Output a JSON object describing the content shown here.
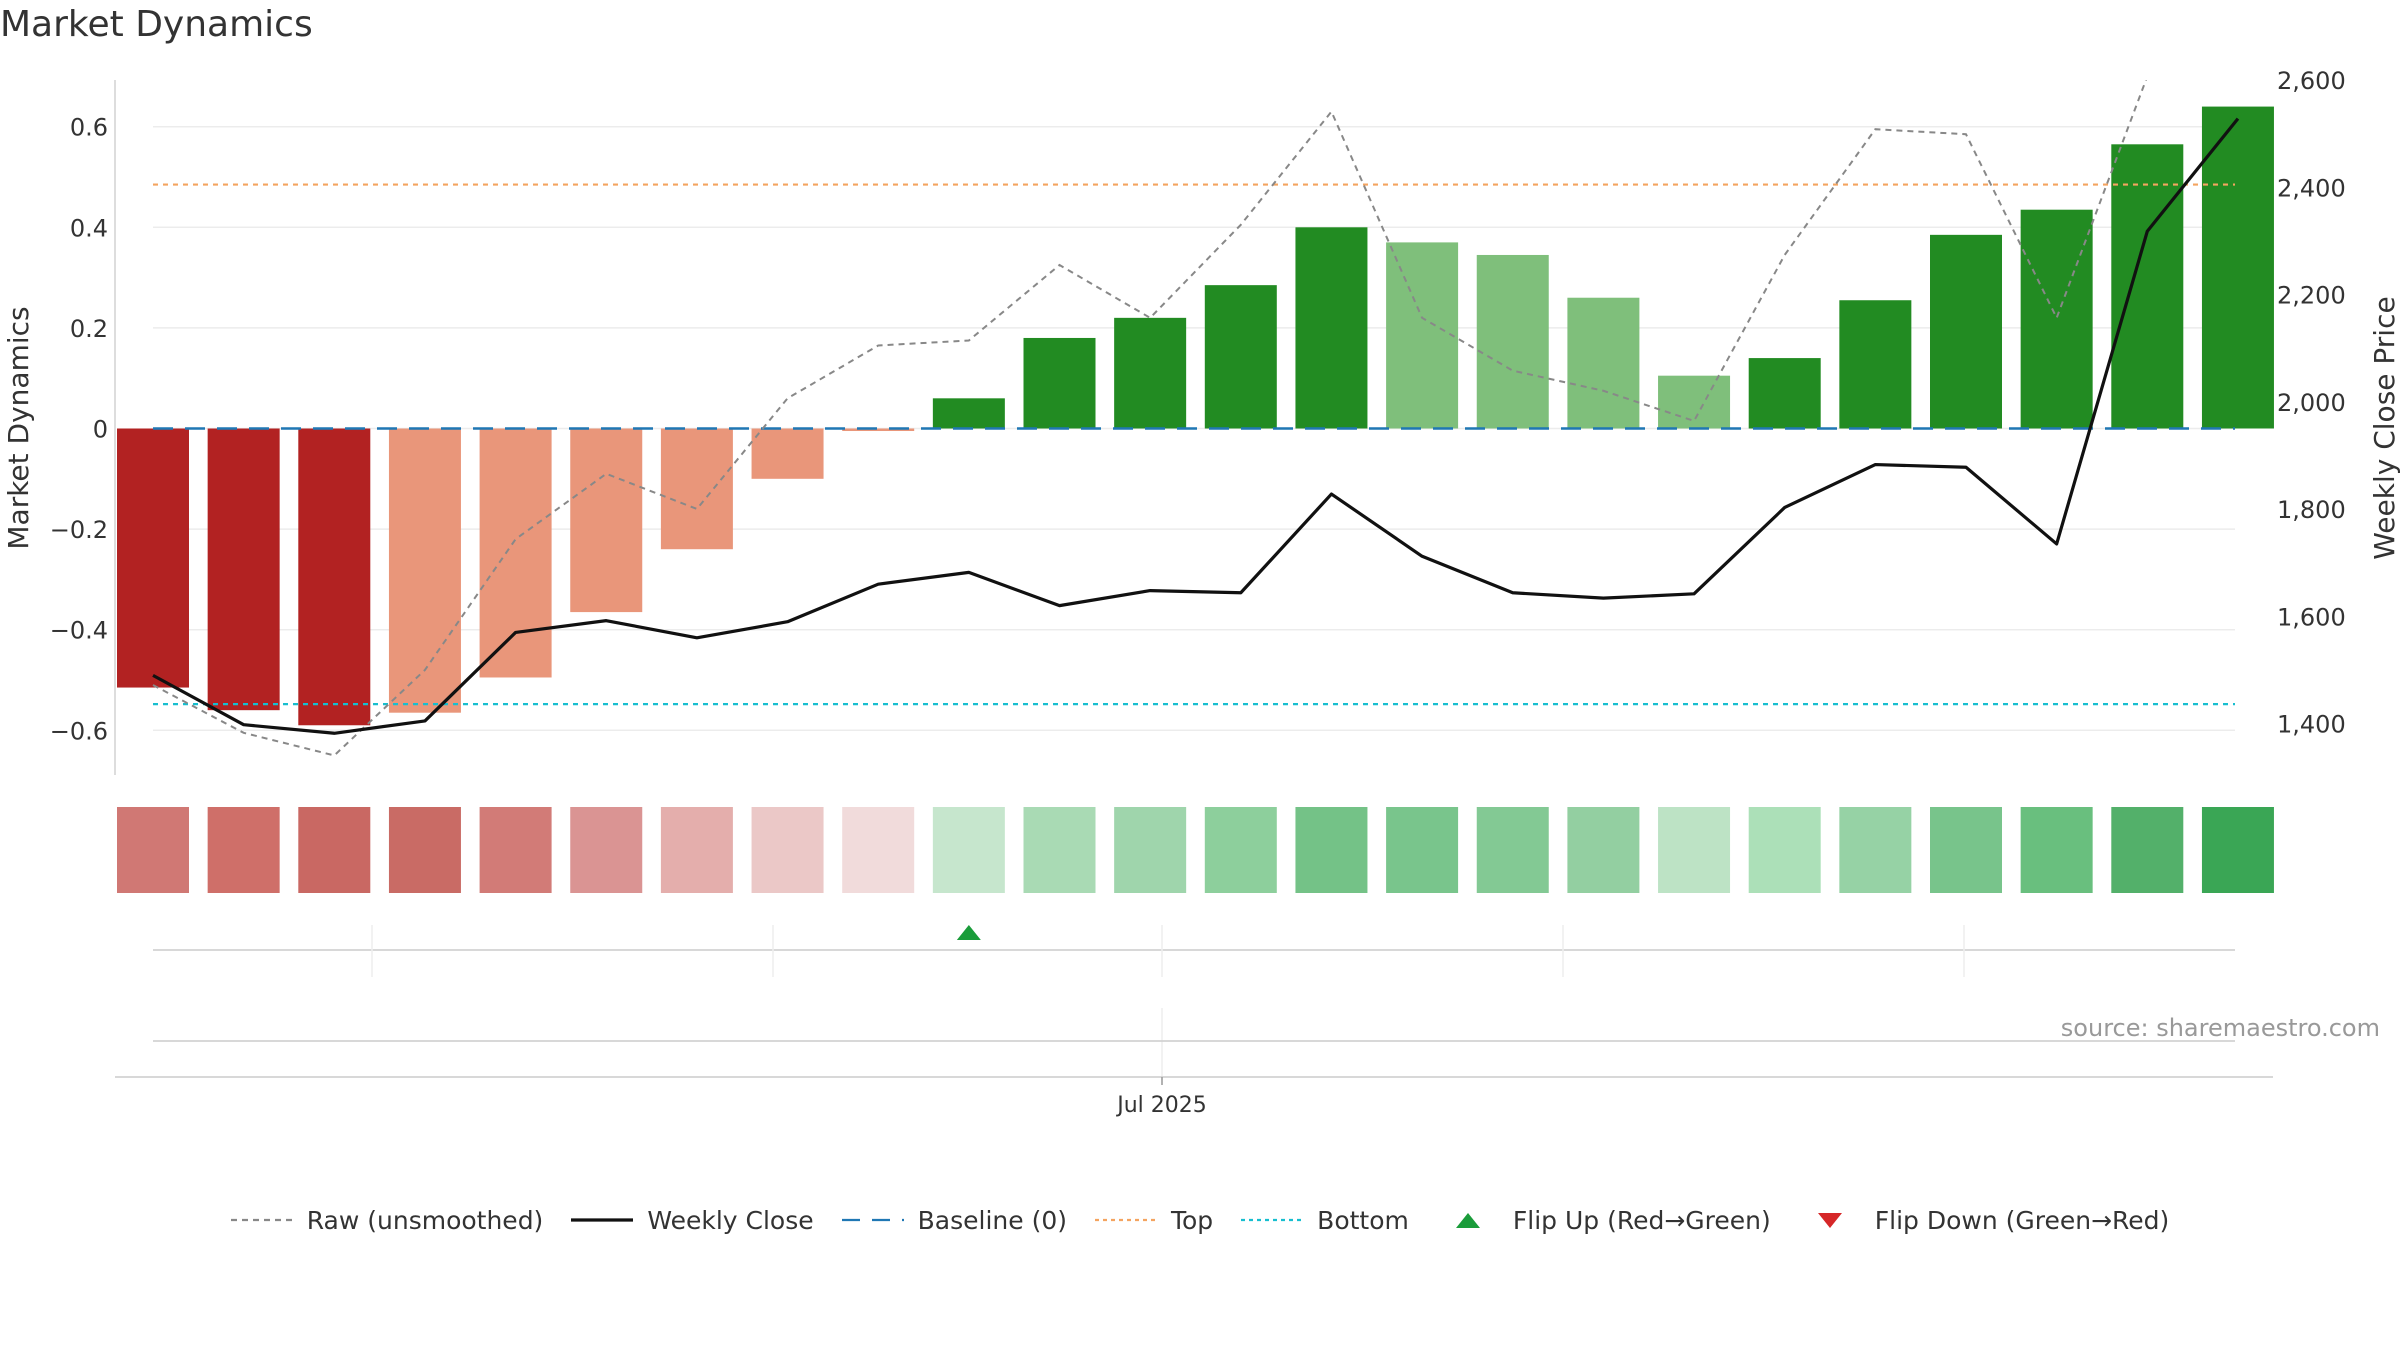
{
  "title": "Market Dynamics",
  "source": "source: sharemaestro.com",
  "chart_data": {
    "type": "bar",
    "title": "Market Dynamics",
    "ylabel": "Market Dynamics",
    "ylabel_right": "Weekly Close Price",
    "ylim": [
      -0.68,
      0.68
    ],
    "ylim_right": [
      1340,
      2600
    ],
    "yticks": [
      -0.6,
      -0.4,
      -0.2,
      0,
      0.2,
      0.4,
      0.6
    ],
    "ytick_labels": [
      "−0.6",
      "−0.4",
      "−0.2",
      "0",
      "0.2",
      "0.4",
      "0.6"
    ],
    "yticks_right": [
      1400,
      1600,
      1800,
      2000,
      2200,
      2400,
      2600
    ],
    "ytick_labels_right": [
      "1,400",
      "1,600",
      "1,800",
      "2,000",
      "2,200",
      "2,400",
      "2,600"
    ],
    "x_tick_label": "Jul 2025",
    "bars": [
      -0.515,
      -0.56,
      -0.59,
      -0.565,
      -0.495,
      -0.365,
      -0.24,
      -0.1,
      -0.005,
      0.06,
      0.18,
      0.22,
      0.285,
      0.4,
      0.37,
      0.345,
      0.26,
      0.105,
      0.14,
      0.255,
      0.385,
      0.435,
      0.565,
      0.64
    ],
    "bar_colors": [
      "#b22222",
      "#b22222",
      "#b22222",
      "#e9967a",
      "#e9967a",
      "#e9967a",
      "#e9967a",
      "#e9967a",
      "#e9967a",
      "#228b22",
      "#228b22",
      "#228b22",
      "#228b22",
      "#228b22",
      "#7fbf7b",
      "#7fbf7b",
      "#7fbf7b",
      "#7fbf7b",
      "#228b22",
      "#228b22",
      "#228b22",
      "#228b22",
      "#228b22",
      "#228b22"
    ],
    "raw": [
      -0.51,
      -0.605,
      -0.65,
      -0.48,
      -0.22,
      -0.09,
      -0.16,
      0.06,
      0.165,
      0.175,
      0.325,
      0.22,
      0.405,
      0.63,
      0.22,
      0.115,
      0.075,
      0.015,
      0.345,
      0.595,
      0.585,
      0.22,
      0.7,
      0.74
    ],
    "weekly_close": [
      1490,
      1398,
      1382,
      1405,
      1570,
      1592,
      1560,
      1590,
      1660,
      1682,
      1620,
      1648,
      1644,
      1828,
      1712,
      1644,
      1634,
      1642,
      1803,
      1883,
      1878,
      1735,
      2318,
      2528
    ],
    "top": 0.485,
    "bottom": -0.548,
    "baseline": 0,
    "strip_colors": [
      "#d07874",
      "#cf6f69",
      "#c96863",
      "#c96b65",
      "#d27b77",
      "#da9493",
      "#e4aeac",
      "#ebc8c7",
      "#f1dbdb",
      "#c6e6cd",
      "#a9dab4",
      "#9fd5ac",
      "#8dcf9c",
      "#74c287",
      "#79c58c",
      "#83c994",
      "#93cfa1",
      "#bde3c5",
      "#ace0b8",
      "#96d2a5",
      "#78c48b",
      "#69bf7e",
      "#53b06a",
      "#3aa655"
    ],
    "flip_up_index": 9,
    "legend": [
      {
        "label": "Raw (unsmoothed)",
        "kind": "dashed",
        "color": "#888888"
      },
      {
        "label": "Weekly Close",
        "kind": "solid",
        "color": "#111111"
      },
      {
        "label": "Baseline (0)",
        "kind": "longdash",
        "color": "#1f77b4"
      },
      {
        "label": "Top",
        "kind": "dotted",
        "color": "#f4a460"
      },
      {
        "label": "Bottom",
        "kind": "dotted",
        "color": "#17becf"
      },
      {
        "label": "Flip Up (Red→Green)",
        "kind": "tri-up",
        "color": "#1a9c3a"
      },
      {
        "label": "Flip Down (Green→Red)",
        "kind": "tri-down",
        "color": "#d62728"
      }
    ]
  }
}
